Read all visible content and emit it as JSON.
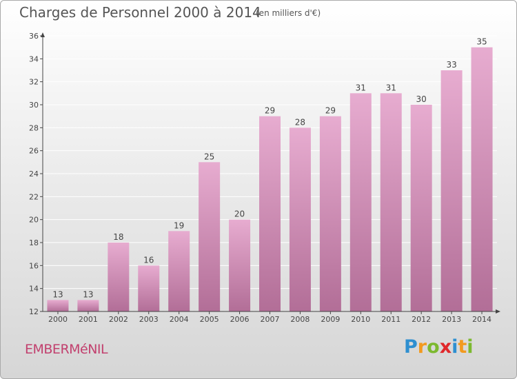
{
  "title": "Charges de Personnel 2000 à 2014",
  "unit_note": "(en milliers d'€)",
  "town": "EMBERMéNIL",
  "logo": {
    "letters": [
      "P",
      "r",
      "o",
      "x",
      "i",
      "t",
      "i"
    ],
    "colors": [
      "#2e8fd0",
      "#f29a1f",
      "#7cb92f",
      "#e0282b",
      "#2e8fd0",
      "#f29a1f",
      "#7cb92f"
    ]
  },
  "colors": {
    "bar_light": "#e7acd0",
    "bar_dark": "#b26e97",
    "grid": "#ffffff",
    "axis": "#444444"
  },
  "chart_data": {
    "type": "bar",
    "title": "Charges de Personnel 2000 à 2014",
    "subtitle": "(en milliers d'€)",
    "xlabel": "",
    "ylabel": "",
    "categories": [
      "2000",
      "2001",
      "2002",
      "2003",
      "2004",
      "2005",
      "2006",
      "2007",
      "2008",
      "2009",
      "2010",
      "2011",
      "2012",
      "2013",
      "2014"
    ],
    "values": [
      13,
      13,
      18,
      16,
      19,
      25,
      20,
      29,
      28,
      29,
      31,
      31,
      30,
      33,
      35
    ],
    "ylim": [
      12,
      36
    ],
    "yticks": [
      12,
      14,
      16,
      18,
      20,
      22,
      24,
      26,
      28,
      30,
      32,
      34,
      36
    ],
    "grid": "horizontal"
  }
}
